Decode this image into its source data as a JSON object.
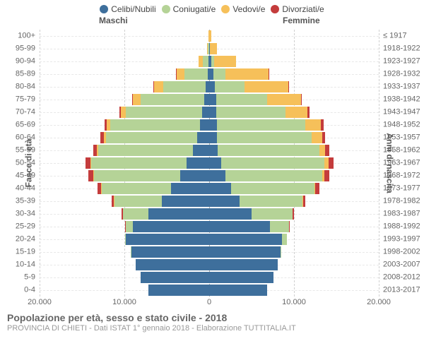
{
  "legend": [
    {
      "label": "Celibi/Nubili",
      "color": "#3e6f9c"
    },
    {
      "label": "Coniugati/e",
      "color": "#b5d397"
    },
    {
      "label": "Vedovi/e",
      "color": "#f6c05a"
    },
    {
      "label": "Divorziati/e",
      "color": "#c43c3c"
    }
  ],
  "labels": {
    "male": "Maschi",
    "female": "Femmine",
    "left_axis": "Fasce di età",
    "right_axis": "Anni di nascita"
  },
  "colors": {
    "celibi": "#3e6f9c",
    "coniugati": "#b5d397",
    "vedovi": "#f6c05a",
    "divorziati": "#c43c3c",
    "grid": "#d0d0d0",
    "center": "#aaaaaa",
    "row_grid": "#e8e8e8",
    "bg": "#ffffff",
    "text": "#666666"
  },
  "x_axis": {
    "max": 20000,
    "ticks": [
      -20000,
      -10000,
      0,
      10000,
      20000
    ],
    "tick_labels": [
      "20.000",
      "10.000",
      "0",
      "10.000",
      "20.000"
    ]
  },
  "footer": {
    "title": "Popolazione per età, sesso e stato civile - 2018",
    "subtitle": "PROVINCIA DI CHIETI - Dati ISTAT 1° gennaio 2018 - Elaborazione TUTTITALIA.IT"
  },
  "rows": [
    {
      "age": "100+",
      "birth": "≤ 1917",
      "m": {
        "celibi": 10,
        "coniugati": 20,
        "vedovi": 30,
        "divorziati": 0
      },
      "f": {
        "celibi": 30,
        "coniugati": 10,
        "vedovi": 200,
        "divorziati": 0
      }
    },
    {
      "age": "95-99",
      "birth": "1918-1922",
      "m": {
        "celibi": 20,
        "coniugati": 120,
        "vedovi": 120,
        "divorziati": 0
      },
      "f": {
        "celibi": 80,
        "coniugati": 40,
        "vedovi": 800,
        "divorziati": 0
      }
    },
    {
      "age": "90-94",
      "birth": "1923-1927",
      "m": {
        "celibi": 80,
        "coniugati": 700,
        "vedovi": 500,
        "divorziati": 0
      },
      "f": {
        "celibi": 250,
        "coniugati": 300,
        "vedovi": 2600,
        "divorziati": 0
      }
    },
    {
      "age": "85-89",
      "birth": "1928-1932",
      "m": {
        "celibi": 200,
        "coniugati": 2700,
        "vedovi": 1000,
        "divorziati": 30
      },
      "f": {
        "celibi": 500,
        "coniugati": 1400,
        "vedovi": 5100,
        "divorziati": 40
      }
    },
    {
      "age": "80-84",
      "birth": "1933-1937",
      "m": {
        "celibi": 400,
        "coniugati": 5000,
        "vedovi": 1100,
        "divorziati": 70
      },
      "f": {
        "celibi": 700,
        "coniugati": 3500,
        "vedovi": 5100,
        "divorziati": 90
      }
    },
    {
      "age": "75-79",
      "birth": "1938-1942",
      "m": {
        "celibi": 600,
        "coniugati": 7500,
        "vedovi": 900,
        "divorziati": 100
      },
      "f": {
        "celibi": 800,
        "coniugati": 6000,
        "vedovi": 4000,
        "divorziati": 130
      }
    },
    {
      "age": "70-74",
      "birth": "1943-1947",
      "m": {
        "celibi": 800,
        "coniugati": 9000,
        "vedovi": 600,
        "divorziati": 160
      },
      "f": {
        "celibi": 800,
        "coniugati": 8200,
        "vedovi": 2600,
        "divorziati": 200
      }
    },
    {
      "age": "65-69",
      "birth": "1948-1952",
      "m": {
        "celibi": 1100,
        "coniugati": 10600,
        "vedovi": 400,
        "divorziati": 250
      },
      "f": {
        "celibi": 900,
        "coniugati": 10400,
        "vedovi": 1900,
        "divorziati": 300
      }
    },
    {
      "age": "60-64",
      "birth": "1953-1957",
      "m": {
        "celibi": 1400,
        "coniugati": 10800,
        "vedovi": 250,
        "divorziati": 350
      },
      "f": {
        "celibi": 900,
        "coniugati": 11200,
        "vedovi": 1200,
        "divorziati": 400
      }
    },
    {
      "age": "55-59",
      "birth": "1958-1962",
      "m": {
        "celibi": 1900,
        "coniugati": 11200,
        "vedovi": 150,
        "divorziati": 450
      },
      "f": {
        "celibi": 1000,
        "coniugati": 12000,
        "vedovi": 700,
        "divorziati": 500
      }
    },
    {
      "age": "50-54",
      "birth": "1963-1967",
      "m": {
        "celibi": 2700,
        "coniugati": 11200,
        "vedovi": 100,
        "divorziati": 550
      },
      "f": {
        "celibi": 1400,
        "coniugati": 12200,
        "vedovi": 450,
        "divorziati": 600
      }
    },
    {
      "age": "45-49",
      "birth": "1968-1972",
      "m": {
        "celibi": 3400,
        "coniugati": 10200,
        "vedovi": 60,
        "divorziati": 550
      },
      "f": {
        "celibi": 1900,
        "coniugati": 11400,
        "vedovi": 250,
        "divorziati": 600
      }
    },
    {
      "age": "40-44",
      "birth": "1973-1977",
      "m": {
        "celibi": 4500,
        "coniugati": 8200,
        "vedovi": 30,
        "divorziati": 400
      },
      "f": {
        "celibi": 2600,
        "coniugati": 9800,
        "vedovi": 130,
        "divorziati": 500
      }
    },
    {
      "age": "35-39",
      "birth": "1978-1982",
      "m": {
        "celibi": 5600,
        "coniugati": 5600,
        "vedovi": 10,
        "divorziati": 250
      },
      "f": {
        "celibi": 3600,
        "coniugati": 7400,
        "vedovi": 60,
        "divorziati": 300
      }
    },
    {
      "age": "30-34",
      "birth": "1983-1987",
      "m": {
        "celibi": 7200,
        "coniugati": 3000,
        "vedovi": 0,
        "divorziati": 100
      },
      "f": {
        "celibi": 5000,
        "coniugati": 4800,
        "vedovi": 20,
        "divorziati": 140
      }
    },
    {
      "age": "25-29",
      "birth": "1988-1992",
      "m": {
        "celibi": 9000,
        "coniugati": 900,
        "vedovi": 0,
        "divorziati": 20
      },
      "f": {
        "celibi": 7200,
        "coniugati": 2200,
        "vedovi": 0,
        "divorziati": 40
      }
    },
    {
      "age": "20-24",
      "birth": "1993-1997",
      "m": {
        "celibi": 9800,
        "coniugati": 150,
        "vedovi": 0,
        "divorziati": 0
      },
      "f": {
        "celibi": 8600,
        "coniugati": 600,
        "vedovi": 0,
        "divorziati": 0
      }
    },
    {
      "age": "15-19",
      "birth": "1998-2002",
      "m": {
        "celibi": 9200,
        "coniugati": 10,
        "vedovi": 0,
        "divorziati": 0
      },
      "f": {
        "celibi": 8400,
        "coniugati": 60,
        "vedovi": 0,
        "divorziati": 0
      }
    },
    {
      "age": "10-14",
      "birth": "2003-2007",
      "m": {
        "celibi": 8700,
        "coniugati": 0,
        "vedovi": 0,
        "divorziati": 0
      },
      "f": {
        "celibi": 8100,
        "coniugati": 0,
        "vedovi": 0,
        "divorziati": 0
      }
    },
    {
      "age": "5-9",
      "birth": "2008-2012",
      "m": {
        "celibi": 8100,
        "coniugati": 0,
        "vedovi": 0,
        "divorziati": 0
      },
      "f": {
        "celibi": 7600,
        "coniugati": 0,
        "vedovi": 0,
        "divorziati": 0
      }
    },
    {
      "age": "0-4",
      "birth": "2013-2017",
      "m": {
        "celibi": 7200,
        "coniugati": 0,
        "vedovi": 0,
        "divorziati": 0
      },
      "f": {
        "celibi": 6800,
        "coniugati": 0,
        "vedovi": 0,
        "divorziati": 0
      }
    }
  ]
}
